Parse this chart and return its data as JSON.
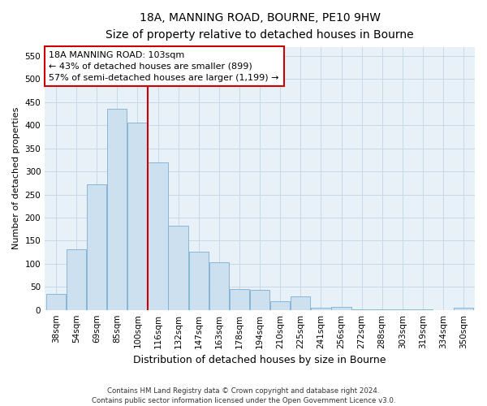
{
  "title_line1": "18A, MANNING ROAD, BOURNE, PE10 9HW",
  "title_line2": "Size of property relative to detached houses in Bourne",
  "xlabel": "Distribution of detached houses by size in Bourne",
  "ylabel": "Number of detached properties",
  "bar_labels": [
    "38sqm",
    "54sqm",
    "69sqm",
    "85sqm",
    "100sqm",
    "116sqm",
    "132sqm",
    "147sqm",
    "163sqm",
    "178sqm",
    "194sqm",
    "210sqm",
    "225sqm",
    "241sqm",
    "256sqm",
    "272sqm",
    "288sqm",
    "303sqm",
    "319sqm",
    "334sqm",
    "350sqm"
  ],
  "bar_values": [
    35,
    132,
    272,
    435,
    405,
    320,
    183,
    126,
    103,
    46,
    44,
    18,
    30,
    5,
    7,
    2,
    1,
    2,
    1,
    0,
    5
  ],
  "bar_color": "#cce0f0",
  "bar_edgecolor": "#7aaed0",
  "vline_x": 4.5,
  "vline_color": "#cc0000",
  "ylim": [
    0,
    570
  ],
  "yticks": [
    0,
    50,
    100,
    150,
    200,
    250,
    300,
    350,
    400,
    450,
    500,
    550
  ],
  "annotation_text": "18A MANNING ROAD: 103sqm\n← 43% of detached houses are smaller (899)\n57% of semi-detached houses are larger (1,199) →",
  "annotation_box_edgecolor": "#cc0000",
  "annotation_box_facecolor": "#ffffff",
  "footer_line1": "Contains HM Land Registry data © Crown copyright and database right 2024.",
  "footer_line2": "Contains public sector information licensed under the Open Government Licence v3.0.",
  "grid_color": "#c8d8e8",
  "background_color": "#e8f0f8",
  "title1_fontsize": 10,
  "title2_fontsize": 9,
  "ylabel_fontsize": 8,
  "xlabel_fontsize": 9,
  "annot_fontsize": 8,
  "tick_fontsize": 7.5
}
